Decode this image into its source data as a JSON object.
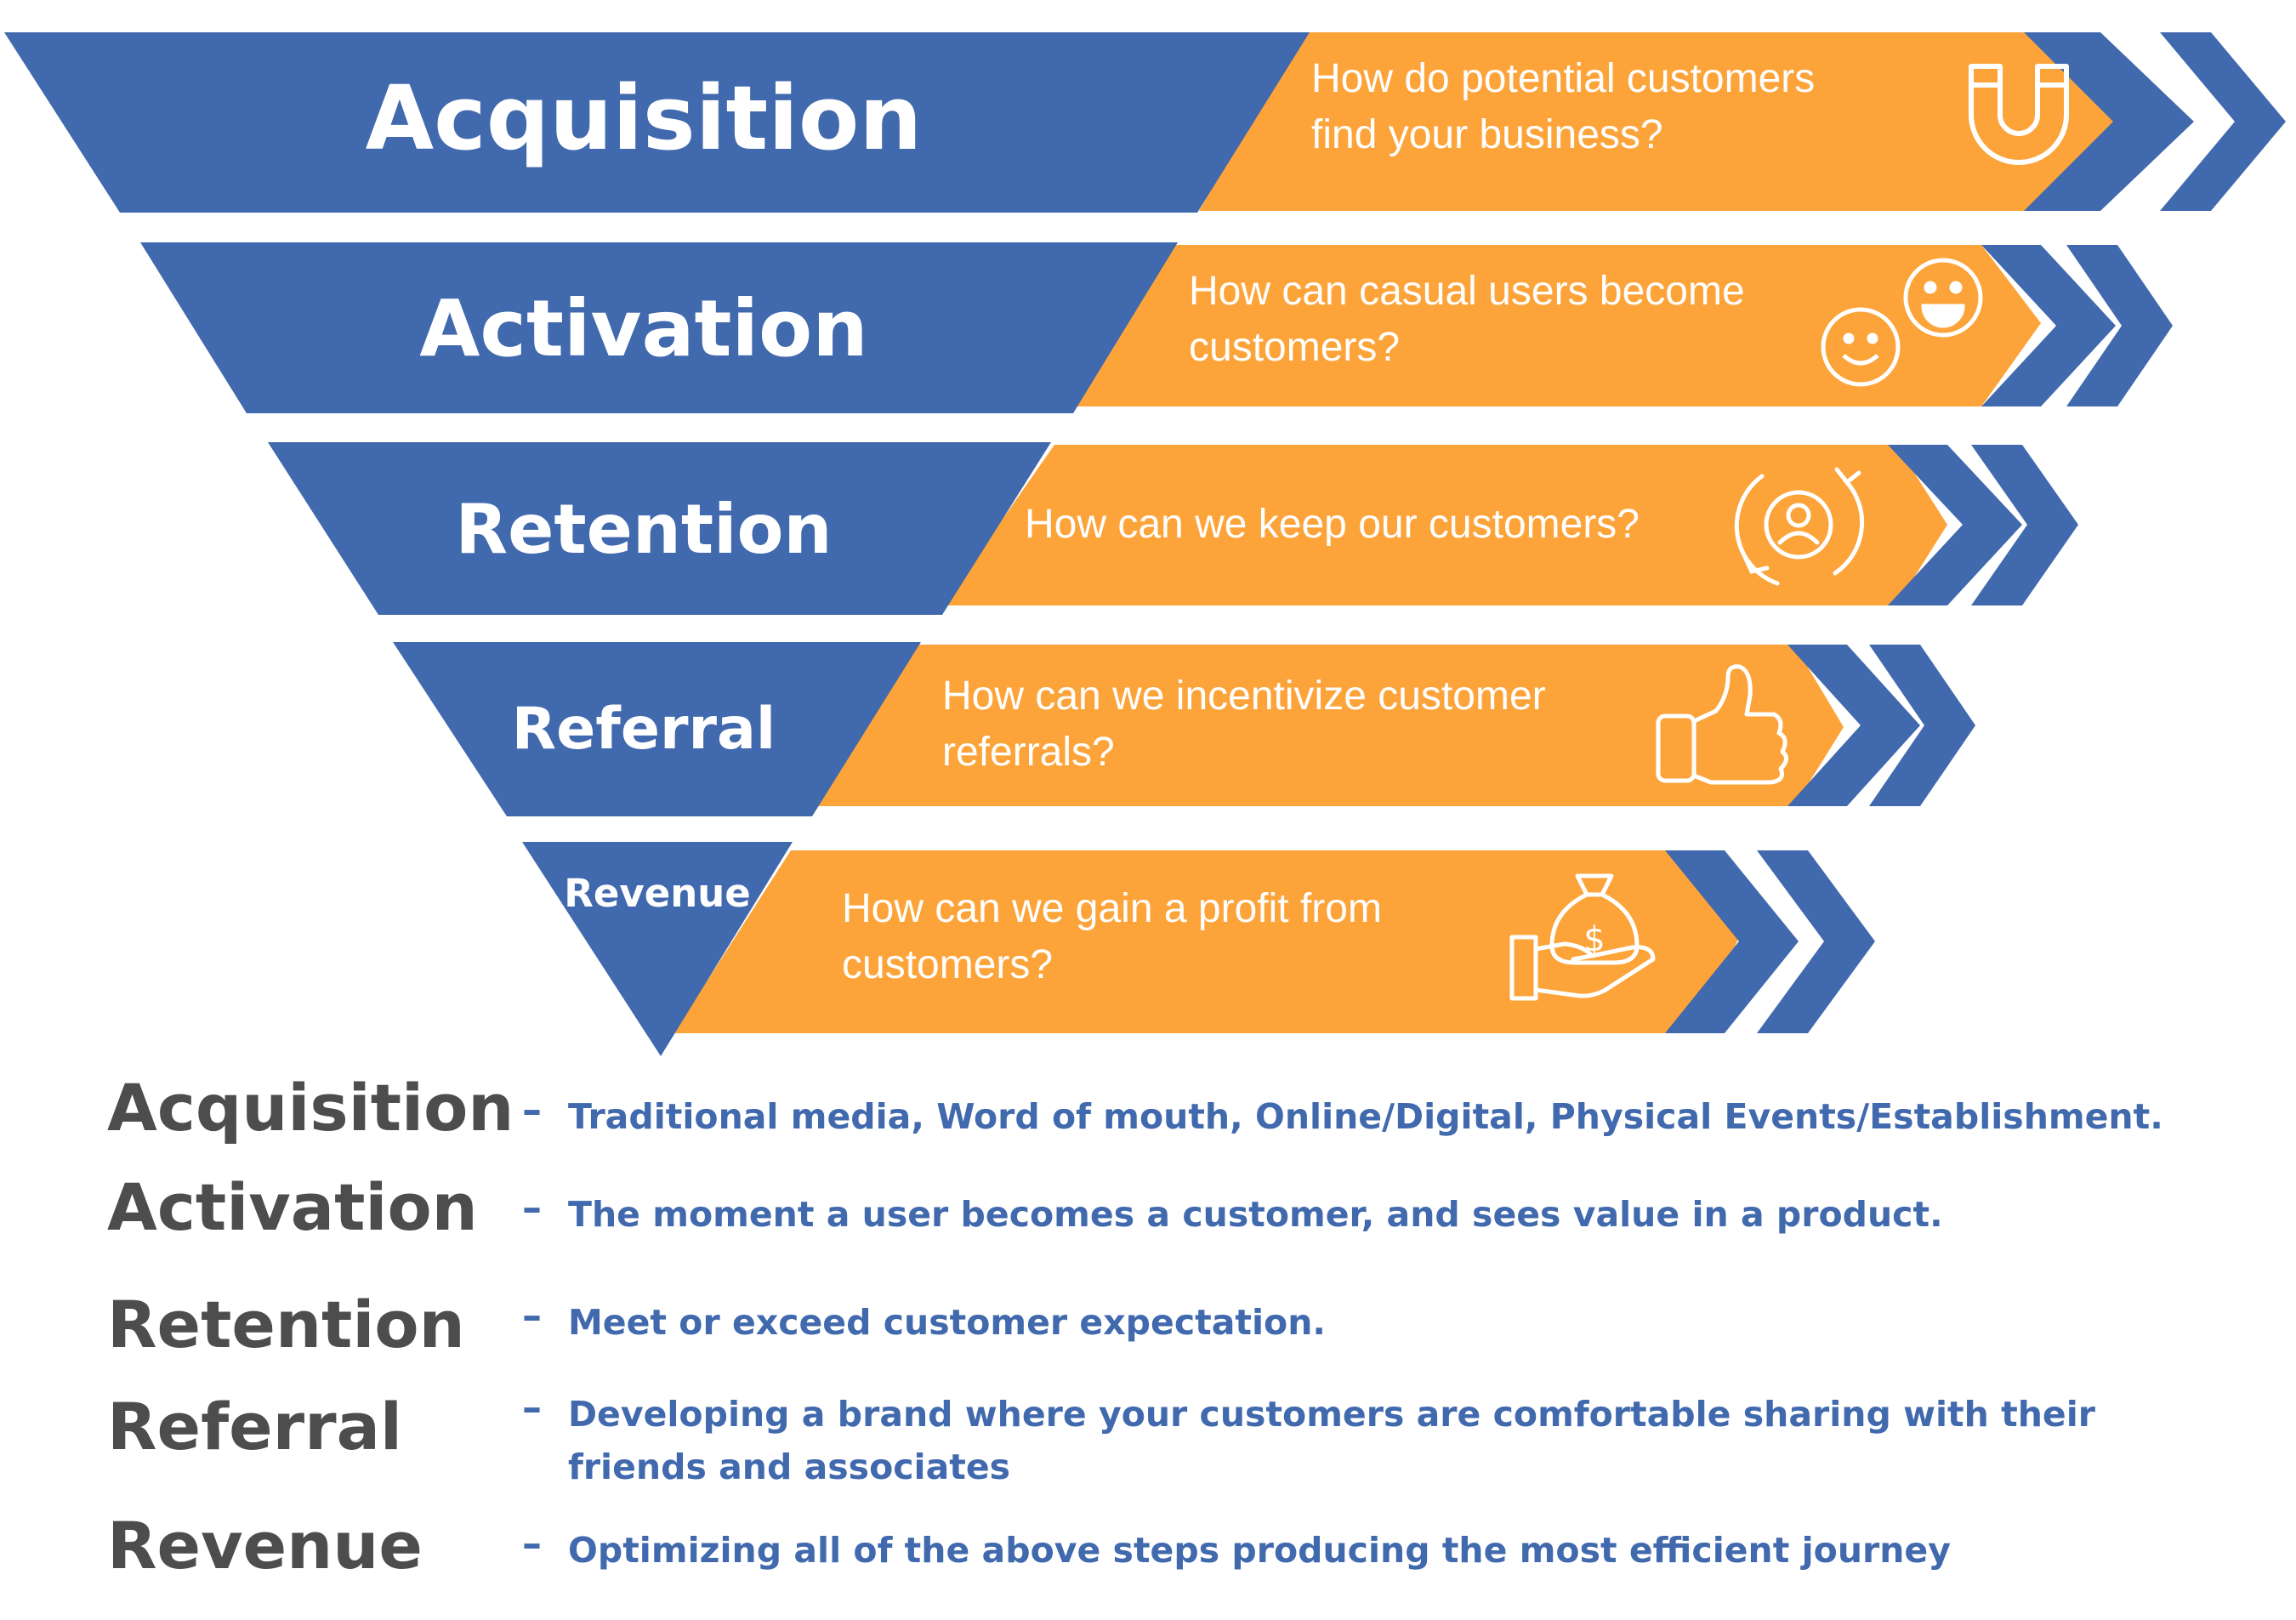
{
  "colors": {
    "blue": "#4169AD",
    "orange": "#FCA43A",
    "white": "#FFFFFF",
    "term_gray": "#4D4D4D"
  },
  "funnel": {
    "stages": [
      {
        "title": "Acquisition",
        "question_lines": [
          "How do potential customers",
          "find your business?"
        ],
        "icon": "magnet-icon"
      },
      {
        "title": "Activation",
        "question_lines": [
          "How can casual users become",
          "customers?"
        ],
        "icon": "smiley-faces-icon"
      },
      {
        "title": "Retention",
        "question_lines": [
          "How can we keep our customers?"
        ],
        "icon": "customer-cycle-icon"
      },
      {
        "title": "Referral",
        "question_lines": [
          "How can we incentivize customer",
          "referrals?"
        ],
        "icon": "thumbs-up-icon"
      },
      {
        "title": "Revenue",
        "question_lines": [
          "How can we gain a profit from",
          "customers?"
        ],
        "icon": "money-bag-hand-icon"
      }
    ]
  },
  "legend": {
    "dash": "–",
    "items": [
      {
        "term": "Acquisition",
        "definition": "Traditional media, Word of mouth, Online/Digital, Physical Events/Establishment."
      },
      {
        "term": "Activation",
        "definition": "The moment a user becomes a customer, and sees value in a product."
      },
      {
        "term": "Retention",
        "definition": "Meet or exceed customer expectation."
      },
      {
        "term": "Referral",
        "definition": "Developing a brand where your customers are comfortable sharing with their friends and associates"
      },
      {
        "term": "Revenue",
        "definition": "Optimizing all of the above steps producing the most efficient journey"
      }
    ]
  }
}
